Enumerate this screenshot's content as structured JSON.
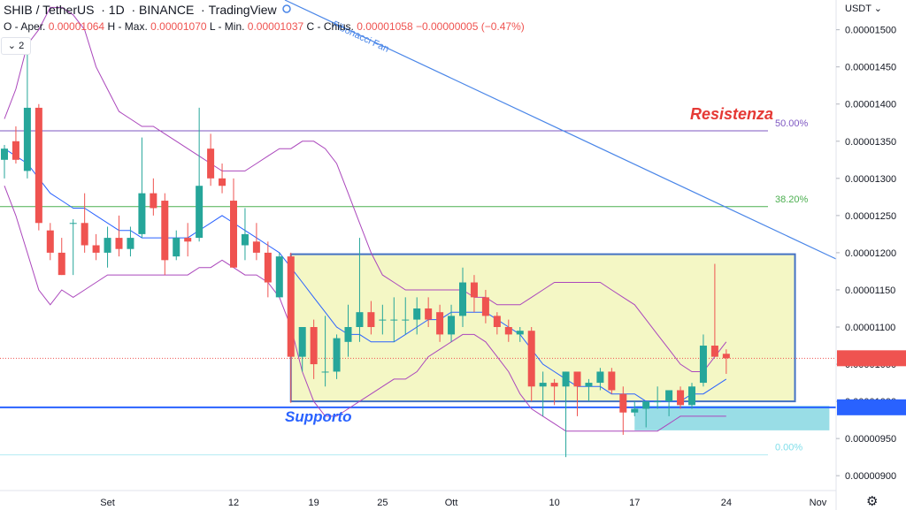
{
  "header": {
    "symbol": "SHIB / TetherUS",
    "interval": "1D",
    "exchange": "BINANCE",
    "platform": "TradingView",
    "ohlc_labels": {
      "open": "O - Aper.",
      "high": "H - Max.",
      "low": "L - Min.",
      "close": "C - Chius."
    },
    "open": "0.00001064",
    "high": "0.00001070",
    "low": "0.00001037",
    "close": "0.00001058",
    "change": "−0.00000005 (−0.47%)",
    "indicator_count": "2",
    "currency": "USDT"
  },
  "chart_data": {
    "type": "candlestick",
    "y_axis": {
      "min": 8.8e-06,
      "max": 1.54e-05,
      "ticks": [
        "0.00001500",
        "0.00001450",
        "0.00001400",
        "0.00001350",
        "0.00001300",
        "0.00001250",
        "0.00001200",
        "0.00001150",
        "0.00001100",
        "0.00001050",
        "0.00001000",
        "0.00000950",
        "0.00000900"
      ]
    },
    "x_axis": {
      "ticks": [
        "Set",
        "12",
        "19",
        "25",
        "Ott",
        "10",
        "17",
        "24",
        "Nov"
      ]
    },
    "price_labels": {
      "last": "0.00001058",
      "support": "0.00000992"
    },
    "annotations": {
      "resistance": "Resistenza",
      "support": "Supporto",
      "fib_50": "50.00%",
      "fib_382": "38.20%",
      "fib_0": "0.00%",
      "fan": "Fibonacci Fan"
    },
    "colors": {
      "up": "#26a69a",
      "down": "#ef5350",
      "bb": "#ab47bc",
      "ma": "#2962ff",
      "fib50": "#7e57c2",
      "fib382": "#4caf50",
      "box": "#4472c4",
      "box_fill": "#f4f7c5",
      "support_zone": "#80d4e0"
    },
    "candles": [
      [
        1.325e-05,
        1.345e-05,
        1.3e-05,
        1.34e-05
      ],
      [
        1.35e-05,
        1.37e-05,
        1.32e-05,
        1.325e-05
      ],
      [
        1.31e-05,
        1.48e-05,
        1.3e-05,
        1.395e-05
      ],
      [
        1.395e-05,
        1.4e-05,
        1.23e-05,
        1.24e-05
      ],
      [
        1.23e-05,
        1.24e-05,
        1.19e-05,
        1.2e-05
      ],
      [
        1.2e-05,
        1.22e-05,
        1.17e-05,
        1.17e-05
      ],
      [
        1.24e-05,
        1.245e-05,
        1.17e-05,
        1.24e-05
      ],
      [
        1.24e-05,
        1.28e-05,
        1.2e-05,
        1.21e-05
      ],
      [
        1.21e-05,
        1.225e-05,
        1.19e-05,
        1.2e-05
      ],
      [
        1.2e-05,
        1.235e-05,
        1.18e-05,
        1.22e-05
      ],
      [
        1.22e-05,
        1.25e-05,
        1.195e-05,
        1.205e-05
      ],
      [
        1.205e-05,
        1.235e-05,
        1.195e-05,
        1.22e-05
      ],
      [
        1.225e-05,
        1.355e-05,
        1.22e-05,
        1.28e-05
      ],
      [
        1.28e-05,
        1.3e-05,
        1.25e-05,
        1.26e-05
      ],
      [
        1.27e-05,
        1.28e-05,
        1.17e-05,
        1.19e-05
      ],
      [
        1.195e-05,
        1.23e-05,
        1.19e-05,
        1.22e-05
      ],
      [
        1.22e-05,
        1.24e-05,
        1.195e-05,
        1.215e-05
      ],
      [
        1.22e-05,
        1.395e-05,
        1.215e-05,
        1.29e-05
      ],
      [
        1.34e-05,
        1.36e-05,
        1.29e-05,
        1.3e-05
      ],
      [
        1.3e-05,
        1.32e-05,
        1.28e-05,
        1.29e-05
      ],
      [
        1.27e-05,
        1.3e-05,
        1.18e-05,
        1.18e-05
      ],
      [
        1.21e-05,
        1.26e-05,
        1.19e-05,
        1.225e-05
      ],
      [
        1.215e-05,
        1.24e-05,
        1.19e-05,
        1.2e-05
      ],
      [
        1.2e-05,
        1.215e-05,
        1.14e-05,
        1.16e-05
      ],
      [
        1.14e-05,
        1.2e-05,
        1.14e-05,
        1.195e-05
      ],
      [
        1.195e-05,
        1.2e-05,
        9.98e-06,
        1.06e-05
      ],
      [
        1.06e-05,
        1.1e-05,
        1.04e-05,
        1.1e-05
      ],
      [
        1.1e-05,
        1.11e-05,
        1.03e-05,
        1.05e-05
      ],
      [
        1.04e-05,
        1.115e-05,
        1.02e-05,
        1.04e-05
      ],
      [
        1.04e-05,
        1.09e-05,
        1.03e-05,
        1.085e-05
      ],
      [
        1.08e-05,
        1.13e-05,
        1.06e-05,
        1.1e-05
      ],
      [
        1.1e-05,
        1.22e-05,
        1.08e-05,
        1.12e-05
      ],
      [
        1.12e-05,
        1.135e-05,
        1.09e-05,
        1.1e-05
      ],
      [
        1.11e-05,
        1.13e-05,
        1.09e-05,
        1.11e-05
      ],
      [
        1.11e-05,
        1.14e-05,
        1.08e-05,
        1.11e-05
      ],
      [
        1.11e-05,
        1.14e-05,
        1.09e-05,
        1.11e-05
      ],
      [
        1.11e-05,
        1.14e-05,
        1.09e-05,
        1.125e-05
      ],
      [
        1.125e-05,
        1.14e-05,
        1.1e-05,
        1.11e-05
      ],
      [
        1.12e-05,
        1.13e-05,
        1.08e-05,
        1.09e-05
      ],
      [
        1.09e-05,
        1.13e-05,
        1.08e-05,
        1.115e-05
      ],
      [
        1.115e-05,
        1.18e-05,
        1.1e-05,
        1.16e-05
      ],
      [
        1.16e-05,
        1.17e-05,
        1.12e-05,
        1.14e-05
      ],
      [
        1.14e-05,
        1.15e-05,
        1.105e-05,
        1.115e-05
      ],
      [
        1.115e-05,
        1.12e-05,
        1.09e-05,
        1.1e-05
      ],
      [
        1.1e-05,
        1.11e-05,
        1.08e-05,
        1.09e-05
      ],
      [
        1.09e-05,
        1.1e-05,
        1.08e-05,
        1.095e-05
      ],
      [
        1.095e-05,
        1.1e-05,
        1e-05,
        1.02e-05
      ],
      [
        1.02e-05,
        1.04e-05,
        9.8e-06,
        1.025e-05
      ],
      [
        1.025e-05,
        1.03e-05,
        9.95e-06,
        1.02e-05
      ],
      [
        1.02e-05,
        1.04e-05,
        9.25e-06,
        1.04e-05
      ],
      [
        1.04e-05,
        1.04e-05,
        9.8e-06,
        1.02e-05
      ],
      [
        1.02e-05,
        1.03e-05,
        1e-05,
        1.025e-05
      ],
      [
        1.025e-05,
        1.045e-05,
        1.015e-05,
        1.04e-05
      ],
      [
        1.04e-05,
        1.045e-05,
        1.01e-05,
        1.015e-05
      ],
      [
        1.01e-05,
        1.02e-05,
        9.55e-06,
        9.85e-06
      ],
      [
        9.85e-06,
        1e-05,
        9.8e-06,
        9.9e-06
      ],
      [
        9.9e-06,
        1e-05,
        9.65e-06,
        1e-05
      ],
      [
        1e-05,
        1.02e-05,
        9.9e-06,
        1e-05
      ],
      [
        1e-05,
        1.01e-05,
        9.8e-06,
        1.015e-05
      ],
      [
        1.015e-05,
        1.02e-05,
        9.9e-06,
        9.95e-06
      ],
      [
        9.95e-06,
        1.025e-05,
        9.9e-06,
        1.02e-05
      ],
      [
        1.025e-05,
        1.09e-05,
        1.02e-05,
        1.075e-05
      ],
      [
        1.075e-05,
        1.185e-05,
        1.06e-05,
        1.06e-05
      ],
      [
        1.064e-05,
        1.07e-05,
        1.037e-05,
        1.058e-05
      ]
    ],
    "bb_upper": [
      1.38e-05,
      1.42e-05,
      1.48e-05,
      1.5e-05,
      1.53e-05,
      1.53e-05,
      1.52e-05,
      1.5e-05,
      1.45e-05,
      1.42e-05,
      1.39e-05,
      1.38e-05,
      1.37e-05,
      1.37e-05,
      1.36e-05,
      1.35e-05,
      1.34e-05,
      1.33e-05,
      1.32e-05,
      1.31e-05,
      1.31e-05,
      1.31e-05,
      1.32e-05,
      1.33e-05,
      1.34e-05,
      1.34e-05,
      1.35e-05,
      1.35e-05,
      1.34e-05,
      1.32e-05,
      1.28e-05,
      1.24e-05,
      1.2e-05,
      1.17e-05,
      1.16e-05,
      1.15e-05,
      1.15e-05,
      1.15e-05,
      1.15e-05,
      1.15e-05,
      1.15e-05,
      1.14e-05,
      1.14e-05,
      1.13e-05,
      1.13e-05,
      1.13e-05,
      1.14e-05,
      1.15e-05,
      1.16e-05,
      1.16e-05,
      1.16e-05,
      1.16e-05,
      1.16e-05,
      1.15e-05,
      1.14e-05,
      1.13e-05,
      1.11e-05,
      1.09e-05,
      1.07e-05,
      1.05e-05,
      1.04e-05,
      1.04e-05,
      1.06e-05,
      1.08e-05
    ],
    "bb_mid": [
      1.34e-05,
      1.33e-05,
      1.32e-05,
      1.3e-05,
      1.28e-05,
      1.27e-05,
      1.26e-05,
      1.26e-05,
      1.25e-05,
      1.24e-05,
      1.23e-05,
      1.23e-05,
      1.22e-05,
      1.22e-05,
      1.22e-05,
      1.22e-05,
      1.22e-05,
      1.23e-05,
      1.24e-05,
      1.25e-05,
      1.24e-05,
      1.23e-05,
      1.22e-05,
      1.21e-05,
      1.2e-05,
      1.18e-05,
      1.16e-05,
      1.14e-05,
      1.12e-05,
      1.1e-05,
      1.09e-05,
      1.09e-05,
      1.08e-05,
      1.08e-05,
      1.08e-05,
      1.09e-05,
      1.1e-05,
      1.11e-05,
      1.11e-05,
      1.12e-05,
      1.12e-05,
      1.12e-05,
      1.12e-05,
      1.11e-05,
      1.1e-05,
      1.09e-05,
      1.07e-05,
      1.05e-05,
      1.04e-05,
      1.03e-05,
      1.02e-05,
      1.02e-05,
      1.02e-05,
      1.01e-05,
      1.01e-05,
      1.01e-05,
      1e-05,
      1e-05,
      1e-05,
      1e-05,
      1.01e-05,
      1.01e-05,
      1.02e-05,
      1.03e-05
    ],
    "bb_lower": [
      1.29e-05,
      1.25e-05,
      1.2e-05,
      1.15e-05,
      1.13e-05,
      1.15e-05,
      1.14e-05,
      1.15e-05,
      1.16e-05,
      1.17e-05,
      1.17e-05,
      1.17e-05,
      1.17e-05,
      1.17e-05,
      1.17e-05,
      1.17e-05,
      1.17e-05,
      1.18e-05,
      1.18e-05,
      1.19e-05,
      1.18e-05,
      1.17e-05,
      1.17e-05,
      1.16e-05,
      1.14e-05,
      1.1e-05,
      1.04e-05,
      1e-05,
      9.8e-06,
      9.8e-06,
      9.9e-06,
      1e-05,
      1.01e-05,
      1.02e-05,
      1.03e-05,
      1.03e-05,
      1.04e-05,
      1.06e-05,
      1.07e-05,
      1.08e-05,
      1.09e-05,
      1.09e-05,
      1.08e-05,
      1.06e-05,
      1.04e-05,
      1.01e-05,
      9.9e-06,
      9.8e-06,
      9.7e-06,
      9.6e-06,
      9.6e-06,
      9.6e-06,
      9.6e-06,
      9.6e-06,
      9.6e-06,
      9.6e-06,
      9.6e-06,
      9.6e-06,
      9.7e-06,
      9.8e-06,
      9.8e-06,
      9.8e-06,
      9.8e-06,
      9.8e-06
    ],
    "fib_levels": {
      "fib_50": 1.364e-05,
      "fib_382": 1.262e-05,
      "fib_0": 9.28e-06,
      "support": 9.92e-06
    },
    "box": {
      "x0": 25,
      "x1": 69,
      "y_top": 1.198e-05,
      "y_bottom": 1e-05
    },
    "support_zone": {
      "x0": 55,
      "x1": 72,
      "y_top": 9.94e-06,
      "y_bottom": 9.61e-06
    }
  }
}
